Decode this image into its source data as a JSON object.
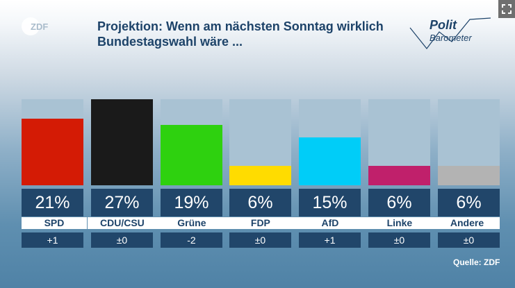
{
  "header": {
    "logo": "ZDF",
    "title_line1": "Projektion: Wenn am nächsten Sonntag wirklich",
    "title_line2": "Bundestagswahl wäre ...",
    "brand_top": "Polit",
    "brand_bottom": "Barometer"
  },
  "footer": {
    "source": "Quelle: ZDF"
  },
  "colors": {
    "track": "#a9c2d3",
    "value_box": "#21466a",
    "SPD": "#d41b05",
    "CDU/CSU": "#1a1a1a",
    "Grüne": "#2ed10f",
    "FDP": "#ffdc00",
    "AfD": "#00cdf8",
    "Linke": "#c0206b",
    "Andere": "#b3b3b3"
  },
  "chart_data": {
    "type": "bar",
    "title": "Projektion: Wenn am nächsten Sonntag wirklich Bundestagswahl wäre ...",
    "categories": [
      "SPD",
      "CDU/CSU",
      "Grüne",
      "FDP",
      "AfD",
      "Linke",
      "Andere"
    ],
    "values": [
      21,
      27,
      19,
      6,
      15,
      6,
      6
    ],
    "value_labels": [
      "21%",
      "27%",
      "19%",
      "6%",
      "15%",
      "6%",
      "6%"
    ],
    "changes": [
      "+1",
      "±0",
      "-2",
      "±0",
      "+1",
      "±0",
      "±0"
    ],
    "ylim": [
      0,
      27
    ],
    "xlabel": "",
    "ylabel": ""
  }
}
